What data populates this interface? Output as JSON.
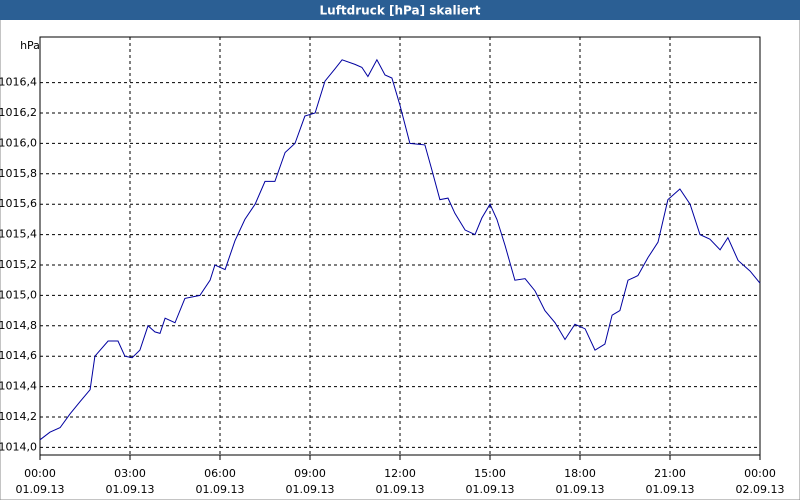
{
  "chart_data": {
    "type": "line",
    "title": "Luftdruck [hPa] skaliert",
    "ylabel": "hPa",
    "xlim": [
      0,
      24
    ],
    "xticks": [
      {
        "value": 0,
        "label": [
          "00:00",
          "01.09.13"
        ]
      },
      {
        "value": 3,
        "label": [
          "03:00",
          "01.09.13"
        ]
      },
      {
        "value": 6,
        "label": [
          "06:00",
          "01.09.13"
        ]
      },
      {
        "value": 9,
        "label": [
          "09:00",
          "01.09.13"
        ]
      },
      {
        "value": 12,
        "label": [
          "12:00",
          "01.09.13"
        ]
      },
      {
        "value": 15,
        "label": [
          "15:00",
          "01.09.13"
        ]
      },
      {
        "value": 18,
        "label": [
          "18:00",
          "01.09.13"
        ]
      },
      {
        "value": 21,
        "label": [
          "21:00",
          "01.09.13"
        ]
      },
      {
        "value": 24,
        "label": [
          "00:00",
          "02.09.13"
        ]
      }
    ],
    "ylim": [
      1013.95,
      1016.7
    ],
    "yticks": [
      {
        "value": 1014.0,
        "label": "1014,0"
      },
      {
        "value": 1014.2,
        "label": "1014,2"
      },
      {
        "value": 1014.4,
        "label": "1014,4"
      },
      {
        "value": 1014.6,
        "label": "1014,6"
      },
      {
        "value": 1014.8,
        "label": "1014,8"
      },
      {
        "value": 1015.0,
        "label": "1015,0"
      },
      {
        "value": 1015.2,
        "label": "1015,2"
      },
      {
        "value": 1015.4,
        "label": "1015,4"
      },
      {
        "value": 1015.6,
        "label": "1015,6"
      },
      {
        "value": 1015.8,
        "label": "1015,8"
      },
      {
        "value": 1016.0,
        "label": "1016,0"
      },
      {
        "value": 1016.2,
        "label": "1016,2"
      },
      {
        "value": 1016.4,
        "label": "1016,4"
      }
    ],
    "grid": true,
    "color": "#0000a0",
    "x": [
      0,
      0.33,
      0.67,
      1,
      1.33,
      1.67,
      1.83,
      2.27,
      2.6,
      2.83,
      3.07,
      3.33,
      3.6,
      3.83,
      4,
      4.17,
      4.5,
      4.83,
      5.33,
      5.67,
      5.83,
      6.17,
      6.5,
      6.83,
      7.17,
      7.5,
      7.83,
      8.17,
      8.5,
      8.83,
      9.17,
      9.5,
      9.83,
      10.07,
      10.5,
      10.73,
      10.93,
      11.23,
      11.5,
      11.73,
      12,
      12.33,
      12.83,
      13.07,
      13.33,
      13.6,
      13.83,
      14.17,
      14.5,
      14.73,
      15,
      15.23,
      15.5,
      15.83,
      16.17,
      16.5,
      16.83,
      17.17,
      17.5,
      17.83,
      18.17,
      18.5,
      18.83,
      19.07,
      19.33,
      19.6,
      19.93,
      20.27,
      20.6,
      20.93,
      21.33,
      21.67,
      22,
      22.33,
      22.67,
      22.93,
      23.27,
      23.67,
      24
    ],
    "values": [
      1014.05,
      1014.1,
      1014.13,
      1014.22,
      1014.3,
      1014.38,
      1014.6,
      1014.7,
      1014.7,
      1014.6,
      1014.59,
      1014.64,
      1014.8,
      1014.76,
      1014.75,
      1014.85,
      1014.82,
      1014.98,
      1015.0,
      1015.1,
      1015.2,
      1015.17,
      1015.36,
      1015.5,
      1015.6,
      1015.75,
      1015.75,
      1015.94,
      1016.0,
      1016.18,
      1016.2,
      1016.41,
      1016.49,
      1016.55,
      1016.52,
      1016.5,
      1016.44,
      1016.55,
      1016.45,
      1016.43,
      1016.25,
      1016.0,
      1015.99,
      1015.82,
      1015.63,
      1015.64,
      1015.54,
      1015.43,
      1015.4,
      1015.51,
      1015.6,
      1015.5,
      1015.33,
      1015.1,
      1015.11,
      1015.03,
      1014.9,
      1014.82,
      1014.71,
      1014.81,
      1014.78,
      1014.64,
      1014.68,
      1014.87,
      1014.9,
      1015.1,
      1015.13,
      1015.25,
      1015.35,
      1015.63,
      1015.7,
      1015.6,
      1015.4,
      1015.37,
      1015.3,
      1015.38,
      1015.23,
      1015.16,
      1015.08
    ]
  }
}
